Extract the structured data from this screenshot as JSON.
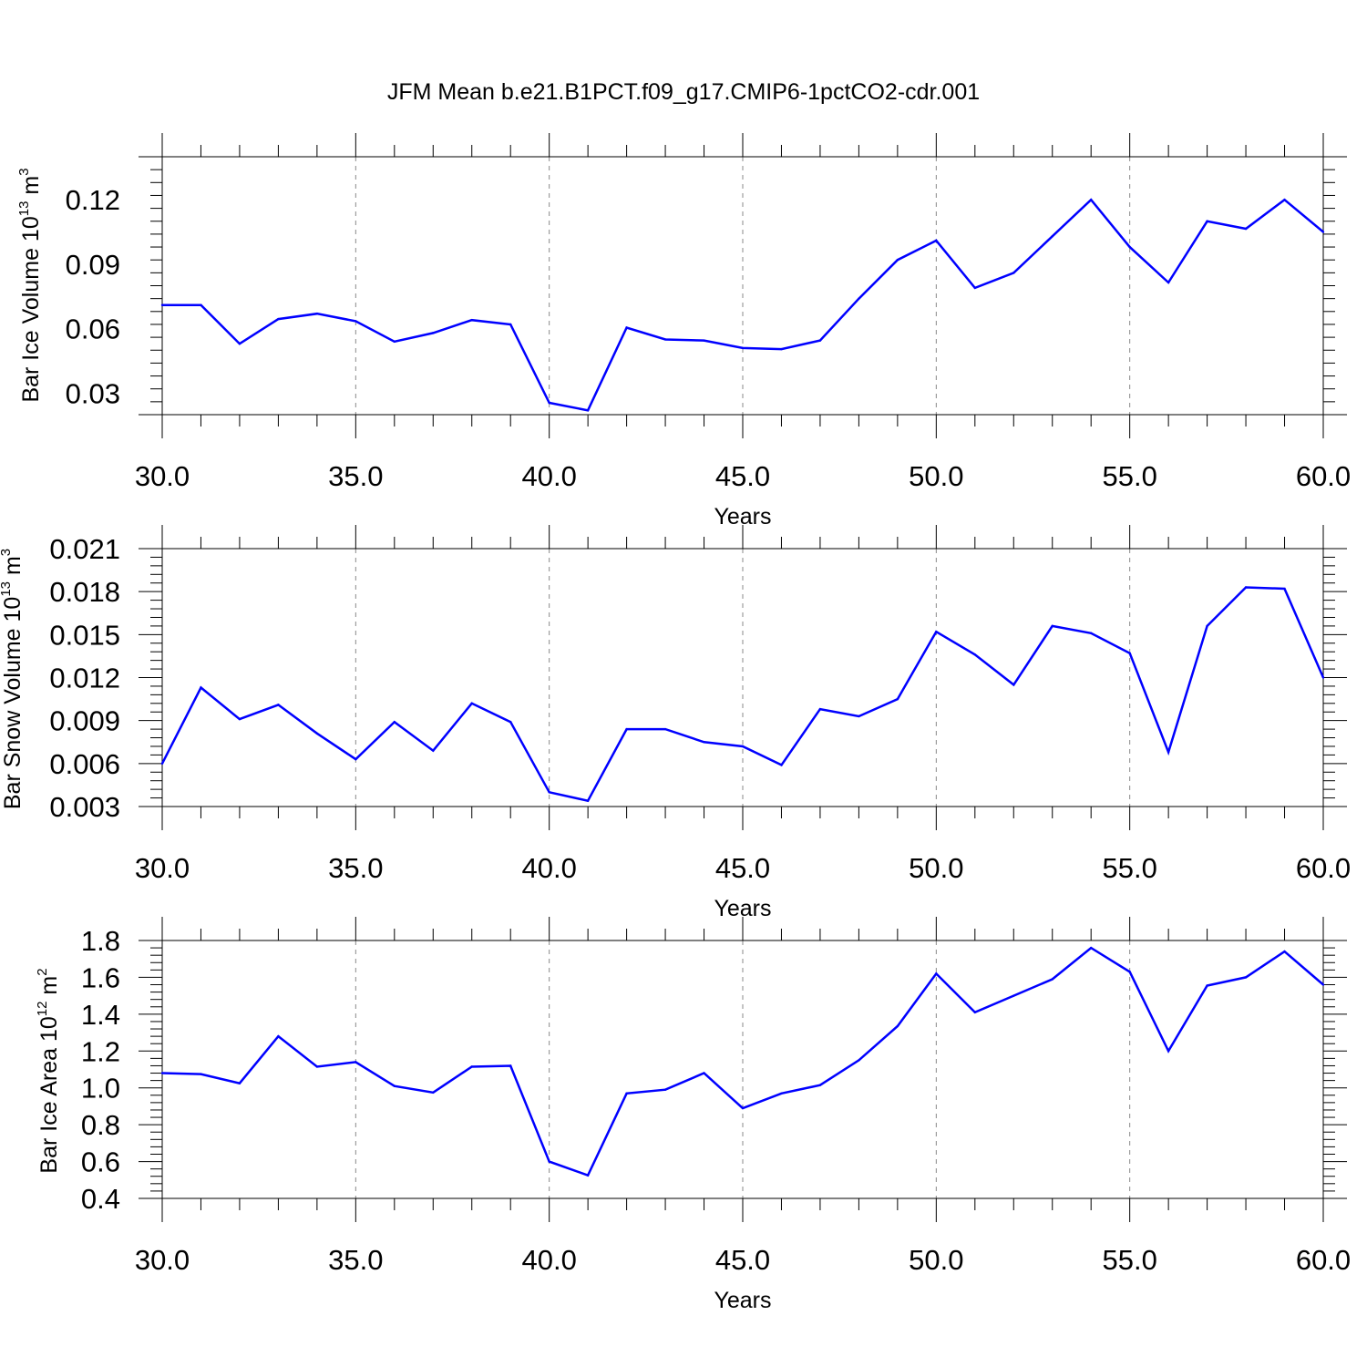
{
  "figure": {
    "title": "JFM Mean b.e21.B1PCT.f09_g17.CMIP6-1pctCO2-cdr.001",
    "background": "#ffffff",
    "line_color": "#0000ff",
    "grid_color": "#888888"
  },
  "chart_data": [
    {
      "type": "line",
      "id": "ice-volume",
      "ylabel_main": "Bar Ice Volume 10",
      "ylabel_exp": "13",
      "ylabel_unit": " m",
      "ylabel_unit_exp": "3",
      "xlabel": "Years",
      "xlim": [
        30,
        60
      ],
      "ylim": [
        0.02,
        0.14
      ],
      "x_ticks": [
        30,
        35,
        40,
        45,
        50,
        55,
        60
      ],
      "x_tick_labels": [
        "30.0",
        "35.0",
        "40.0",
        "45.0",
        "50.0",
        "55.0",
        "60.0"
      ],
      "y_ticks": [
        0.03,
        0.06,
        0.09,
        0.12
      ],
      "y_tick_labels": [
        "0.03",
        "0.06",
        "0.09",
        "0.12"
      ],
      "grid": "vertical dashed",
      "x": [
        30,
        31,
        32,
        33,
        34,
        35,
        36,
        37,
        38,
        39,
        40,
        41,
        42,
        43,
        44,
        45,
        46,
        47,
        48,
        49,
        50,
        51,
        52,
        53,
        54,
        55,
        56,
        57,
        58,
        59,
        60
      ],
      "values": [
        0.071,
        0.071,
        0.053,
        0.0645,
        0.067,
        0.0635,
        0.054,
        0.058,
        0.064,
        0.062,
        0.0255,
        0.022,
        0.0605,
        0.055,
        0.0545,
        0.051,
        0.0505,
        0.0545,
        0.074,
        0.092,
        0.101,
        0.079,
        0.086,
        0.103,
        0.12,
        0.098,
        0.0815,
        0.11,
        0.1065,
        0.12,
        0.105
      ]
    },
    {
      "type": "line",
      "id": "snow-volume",
      "ylabel_main": "Bar Snow Volume 10",
      "ylabel_exp": "13",
      "ylabel_unit": " m",
      "ylabel_unit_exp": "3",
      "xlabel": "Years",
      "xlim": [
        30,
        60
      ],
      "ylim": [
        0.003,
        0.021
      ],
      "x_ticks": [
        30,
        35,
        40,
        45,
        50,
        55,
        60
      ],
      "x_tick_labels": [
        "30.0",
        "35.0",
        "40.0",
        "45.0",
        "50.0",
        "55.0",
        "60.0"
      ],
      "y_ticks": [
        0.003,
        0.006,
        0.009,
        0.012,
        0.015,
        0.018,
        0.021
      ],
      "y_tick_labels": [
        "0.003",
        "0.006",
        "0.009",
        "0.012",
        "0.015",
        "0.018",
        "0.021"
      ],
      "grid": "vertical dashed",
      "x": [
        30,
        31,
        32,
        33,
        34,
        35,
        36,
        37,
        38,
        39,
        40,
        41,
        42,
        43,
        44,
        45,
        46,
        47,
        48,
        49,
        50,
        51,
        52,
        53,
        54,
        55,
        56,
        57,
        58,
        59,
        60
      ],
      "values": [
        0.006,
        0.0113,
        0.0091,
        0.0101,
        0.0081,
        0.0063,
        0.0089,
        0.0069,
        0.0102,
        0.0089,
        0.004,
        0.0034,
        0.0084,
        0.0084,
        0.0075,
        0.0072,
        0.0059,
        0.0098,
        0.0093,
        0.0105,
        0.0152,
        0.0136,
        0.0115,
        0.0156,
        0.0151,
        0.0137,
        0.0068,
        0.0156,
        0.0183,
        0.0182,
        0.012
      ]
    },
    {
      "type": "line",
      "id": "ice-area",
      "ylabel_main": "Bar Ice Area 10",
      "ylabel_exp": "12",
      "ylabel_unit": " m",
      "ylabel_unit_exp": "2",
      "xlabel": "Years",
      "xlim": [
        30,
        60
      ],
      "ylim": [
        0.4,
        1.8
      ],
      "x_ticks": [
        30,
        35,
        40,
        45,
        50,
        55,
        60
      ],
      "x_tick_labels": [
        "30.0",
        "35.0",
        "40.0",
        "45.0",
        "50.0",
        "55.0",
        "60.0"
      ],
      "y_ticks": [
        0.4,
        0.6,
        0.8,
        1.0,
        1.2,
        1.4,
        1.6,
        1.8
      ],
      "y_tick_labels": [
        "0.4",
        "0.6",
        "0.8",
        "1.0",
        "1.2",
        "1.4",
        "1.6",
        "1.8"
      ],
      "grid": "vertical dashed",
      "x": [
        30,
        31,
        32,
        33,
        34,
        35,
        36,
        37,
        38,
        39,
        40,
        41,
        42,
        43,
        44,
        45,
        46,
        47,
        48,
        49,
        50,
        51,
        52,
        53,
        54,
        55,
        56,
        57,
        58,
        59,
        60
      ],
      "values": [
        1.08,
        1.075,
        1.025,
        1.28,
        1.115,
        1.14,
        1.01,
        0.975,
        1.115,
        1.12,
        0.6,
        0.525,
        0.97,
        0.99,
        1.08,
        0.89,
        0.97,
        1.015,
        1.15,
        1.335,
        1.62,
        1.41,
        1.5,
        1.59,
        1.76,
        1.63,
        1.2,
        1.555,
        1.6,
        1.74,
        1.56
      ]
    }
  ]
}
